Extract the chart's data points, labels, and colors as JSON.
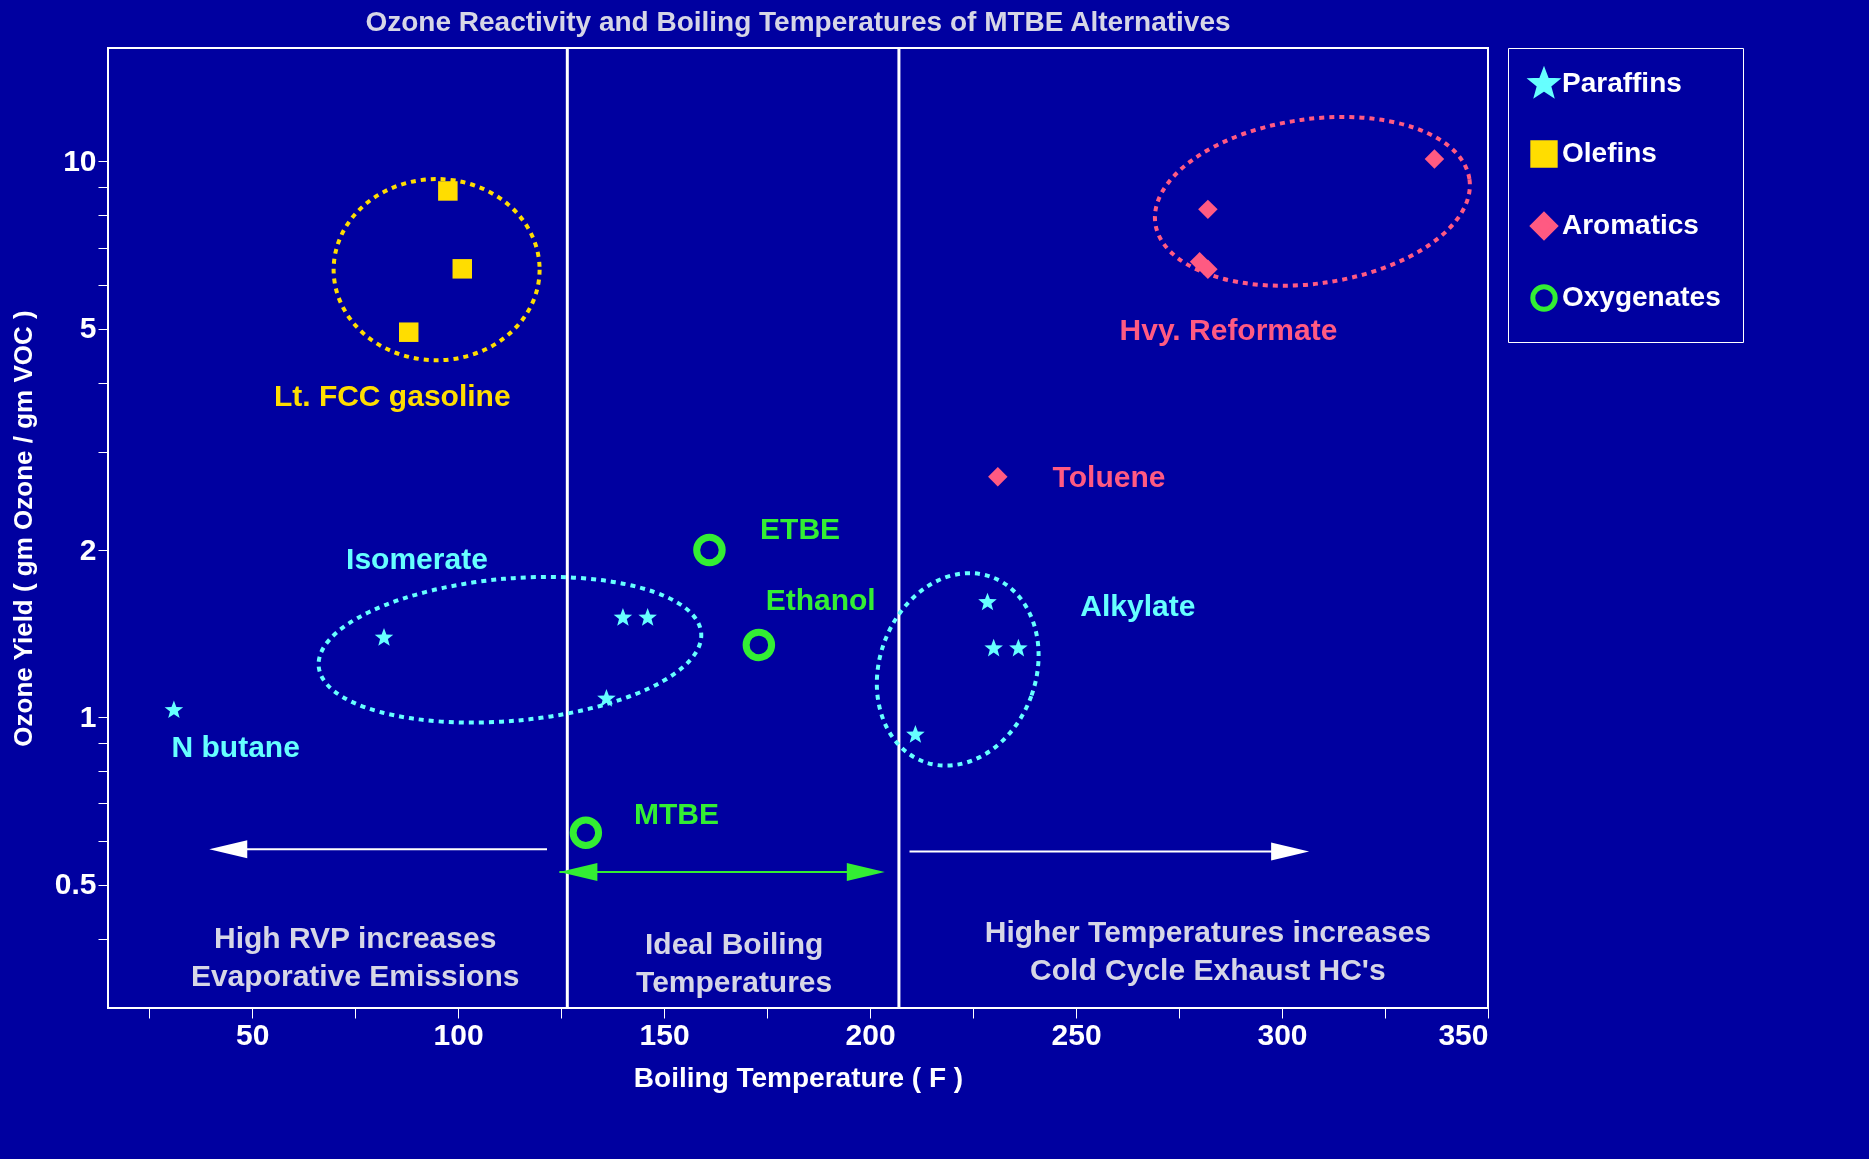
{
  "chart_data": {
    "type": "scatter",
    "title": "Ozone Reactivity and Boiling Temperatures of MTBE Alternatives",
    "xlabel": "Boiling Temperature  ( F )",
    "ylabel": "Ozone Yield   ( gm Ozone / gm VOC )",
    "series": [
      {
        "name": "Paraffins",
        "color": "#66ffff",
        "marker": "star",
        "x": [
          31,
          82,
          140,
          146,
          136,
          228.5,
          230,
          236,
          211
        ],
        "values": [
          1.03,
          1.39,
          1.51,
          1.51,
          1.08,
          1.61,
          1.33,
          1.33,
          0.93
        ]
      },
      {
        "name": "Olefins",
        "color": "#ffdd00",
        "marker": "square",
        "x": [
          97.5,
          101,
          88
        ],
        "values": [
          8.85,
          6.41,
          4.93
        ]
      },
      {
        "name": "Aromatics",
        "color": "#ff5a82",
        "marker": "diamond",
        "x": [
          337,
          282,
          280,
          282,
          231
        ],
        "values": [
          10.1,
          8.2,
          6.6,
          6.4,
          2.71
        ]
      },
      {
        "name": "Oxygenates",
        "color": "#33ee33",
        "marker": "circle",
        "x": [
          161,
          173,
          131
        ],
        "values": [
          2.0,
          1.35,
          0.62
        ]
      }
    ],
    "xlim": [
      15,
      350
    ],
    "ylim": [
      0.3,
      16
    ],
    "log": "y",
    "xticks": [
      {
        "value": 25,
        "label": null
      },
      50,
      {
        "value": 75,
        "label": null
      },
      100,
      {
        "value": 125,
        "label": null
      },
      150,
      {
        "value": 175,
        "label": null
      },
      200,
      {
        "value": 225,
        "label": null
      },
      250,
      {
        "value": 275,
        "label": null
      },
      300,
      {
        "value": 325,
        "label": null
      },
      350
    ],
    "yticks": [
      {
        "value": 0.4,
        "label": null
      },
      0.5,
      {
        "value": 0.6,
        "label": null
      },
      {
        "value": 0.7,
        "label": null
      },
      {
        "value": 0.8,
        "label": null
      },
      {
        "value": 0.9,
        "label": null
      },
      1,
      2,
      {
        "value": 3,
        "label": null
      },
      {
        "value": 4,
        "label": null
      },
      5,
      {
        "value": 6,
        "label": null
      },
      {
        "value": 7,
        "label": null
      },
      {
        "value": 8,
        "label": null
      },
      {
        "value": 9,
        "label": null
      },
      10
    ],
    "ref_lines": [
      {
        "axis": "x",
        "value": 126.5
      },
      {
        "axis": "x",
        "value": 207
      }
    ],
    "annotations": [
      "Lt. FCC gasoline",
      "Hvy. Reformate",
      "Toluene",
      "ETBE",
      "Ethanol",
      "MTBE",
      "Isomerate",
      "Alkylate",
      "N butane",
      "High RVP increases\nEvaporative Emissions",
      "Ideal Boiling\nTemperatures",
      "Higher Temperatures increases\nCold Cycle  Exhaust HC's"
    ],
    "grid": false,
    "legend": "right"
  }
}
